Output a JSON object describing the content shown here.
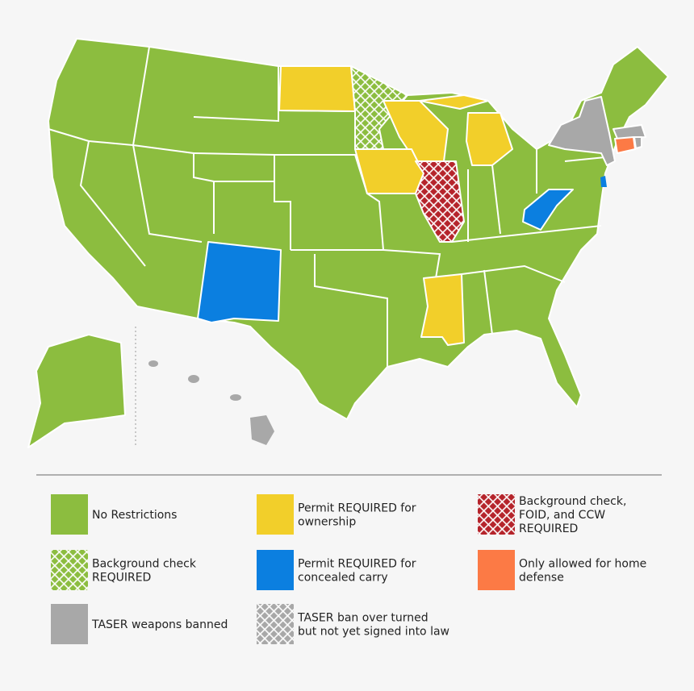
{
  "legend": {
    "items": [
      {
        "lines": [
          "No Restrictions"
        ],
        "color": "#8cbd3f",
        "pattern": "solid"
      },
      {
        "lines": [
          "Permit REQUIRED for",
          "ownership"
        ],
        "color": "#f2cf2a",
        "pattern": "solid"
      },
      {
        "lines": [
          "Background check,",
          "FOID, and CCW",
          "REQUIRED"
        ],
        "color": "#b5242b",
        "pattern": "crosshatch"
      },
      {
        "lines": [
          "Background check",
          "REQUIRED"
        ],
        "color": "#8cbd3f",
        "pattern": "crosshatch"
      },
      {
        "lines": [
          "Permit REQUIRED for",
          "concealed carry"
        ],
        "color": "#0b7fe0",
        "pattern": "solid"
      },
      {
        "lines": [
          "Only allowed for home",
          "defense"
        ],
        "color": "#fc7a45",
        "pattern": "solid"
      },
      {
        "lines": [
          "TASER weapons banned"
        ],
        "color": "#a8a8a8",
        "pattern": "solid"
      },
      {
        "lines": [
          "TASER ban over turned",
          "but not yet signed into law"
        ],
        "color": "#a8a8a8",
        "pattern": "crosshatch"
      }
    ]
  }
}
